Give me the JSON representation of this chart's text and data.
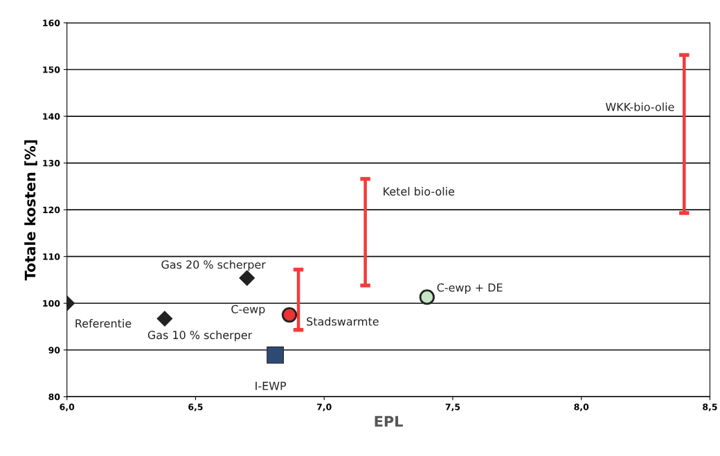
{
  "chart_data": {
    "type": "scatter",
    "xlabel": "EPL",
    "ylabel": "Totale kosten [%]",
    "xlim": [
      6.0,
      8.5
    ],
    "ylim": [
      80,
      160
    ],
    "xticks": [
      {
        "value": 6.0,
        "label": "6,0"
      },
      {
        "value": 6.5,
        "label": "6,5"
      },
      {
        "value": 7.0,
        "label": "7,0"
      },
      {
        "value": 7.5,
        "label": "7,5"
      },
      {
        "value": 8.0,
        "label": "8,0"
      },
      {
        "value": 8.5,
        "label": "8,5"
      }
    ],
    "yticks": [
      80,
      90,
      100,
      110,
      120,
      130,
      140,
      150,
      160
    ],
    "grid": "y",
    "legend": false,
    "series": [
      {
        "name": "Referentie",
        "marker": "diamond",
        "color": "#222222",
        "x": [
          6.0
        ],
        "values": [
          100
        ]
      },
      {
        "name": "Gas 10 % scherper",
        "marker": "diamond",
        "color": "#222222",
        "x": [
          6.38
        ],
        "values": [
          96.7
        ]
      },
      {
        "name": "Gas 20 % scherper",
        "marker": "diamond",
        "color": "#222222",
        "x": [
          6.7
        ],
        "values": [
          105.4
        ]
      },
      {
        "name": "I-EWP",
        "marker": "square",
        "color": "#2e4a72",
        "x": [
          6.81
        ],
        "values": [
          88.9
        ]
      },
      {
        "name": "C-ewp",
        "marker": "circle",
        "color": "#ee3333",
        "x": [
          6.865
        ],
        "values": [
          97.5
        ]
      },
      {
        "name": "C-ewp + DE",
        "marker": "circle",
        "color": "#c4e6c4",
        "x": [
          7.4
        ],
        "values": [
          101.3
        ]
      },
      {
        "name": "Stadswarmte",
        "type": "bar",
        "color": "#f23c3c",
        "x": [
          6.9
        ],
        "base": [
          94.3
        ],
        "values": [
          12.9
        ]
      },
      {
        "name": "Ketel bio-olie",
        "type": "bar",
        "color": "#f23c3c",
        "x": [
          7.16
        ],
        "base": [
          103.8
        ],
        "values": [
          22.8
        ]
      },
      {
        "name": "WKK-bio-olie",
        "type": "bar",
        "color": "#f23c3c",
        "x": [
          8.4
        ],
        "base": [
          119.3
        ],
        "values": [
          33.8
        ]
      }
    ]
  }
}
